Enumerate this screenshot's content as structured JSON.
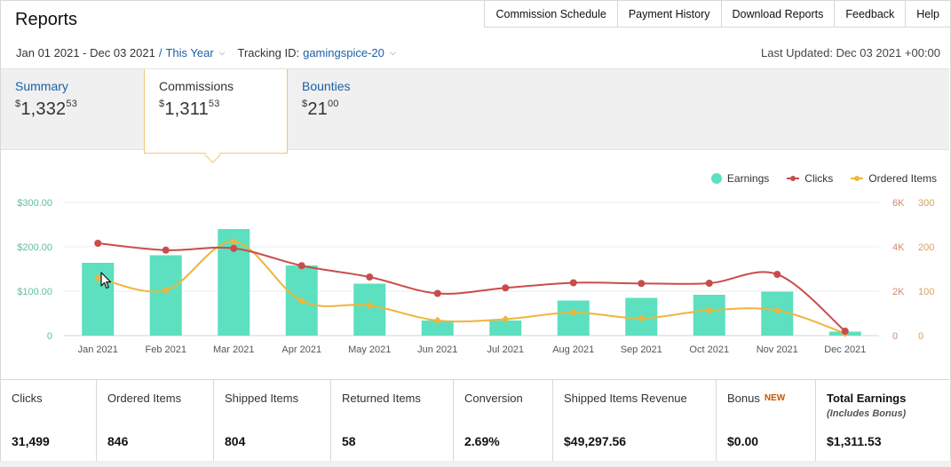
{
  "header": {
    "title": "Reports",
    "nav": [
      "Commission Schedule",
      "Payment History",
      "Download Reports",
      "Feedback",
      "Help"
    ]
  },
  "filters": {
    "date_range": "Jan 01 2021 - Dec 03 2021",
    "separator": "/",
    "preset": "This Year",
    "tracking_label": "Tracking ID:",
    "tracking_id": "gamingspice-20",
    "last_updated": "Last Updated: Dec 03 2021 +00:00"
  },
  "tabs": [
    {
      "label": "Summary",
      "currency": "$",
      "whole": "1,332",
      "cents": "53",
      "active": false
    },
    {
      "label": "Commissions",
      "currency": "$",
      "whole": "1,311",
      "cents": "53",
      "active": true
    },
    {
      "label": "Bounties",
      "currency": "$",
      "whole": "21",
      "cents": "00",
      "active": false
    }
  ],
  "legend": {
    "earnings": "Earnings",
    "clicks": "Clicks",
    "ordered": "Ordered Items"
  },
  "colors": {
    "earnings": "#5ce0bf",
    "clicks": "#c94c4c",
    "ordered": "#f0b43c",
    "link": "#1a5fa8",
    "accent_border": "#f0c875"
  },
  "chart_data": {
    "type": "bar",
    "categories": [
      "Jan 2021",
      "Feb 2021",
      "Mar 2021",
      "Apr 2021",
      "May 2021",
      "Jun 2021",
      "Jul 2021",
      "Aug 2021",
      "Sep 2021",
      "Oct 2021",
      "Nov 2021",
      "Dec 2021"
    ],
    "series": [
      {
        "name": "Earnings",
        "type": "bar",
        "axis": "left",
        "values": [
          164,
          181,
          240,
          158,
          117,
          34,
          34,
          79,
          85,
          92,
          99,
          9
        ]
      },
      {
        "name": "Clicks",
        "type": "line",
        "axis": "right-k",
        "values": [
          4160,
          3850,
          3930,
          3150,
          2640,
          1900,
          2150,
          2380,
          2350,
          2360,
          2760,
          200
        ]
      },
      {
        "name": "Ordered Items",
        "type": "line",
        "axis": "right",
        "values": [
          130,
          102,
          212,
          78,
          68,
          34,
          37,
          52,
          39,
          57,
          57,
          5
        ]
      }
    ],
    "y_left": {
      "ticks": [
        "$300.00",
        "$200.00",
        "$100.00",
        "0"
      ],
      "ylim": [
        0,
        300
      ]
    },
    "y_right_k": {
      "ticks": [
        "6K",
        "4K",
        "2K",
        "0"
      ],
      "ylim": [
        0,
        6000
      ]
    },
    "y_right": {
      "ticks": [
        "300",
        "200",
        "100",
        "0"
      ],
      "ylim": [
        0,
        300
      ]
    },
    "legend_position": "top-right",
    "grid": true
  },
  "stats": [
    {
      "label": "Clicks",
      "value": "31,499"
    },
    {
      "label": "Ordered Items",
      "value": "846"
    },
    {
      "label": "Shipped Items",
      "value": "804"
    },
    {
      "label": "Returned Items",
      "value": "58"
    },
    {
      "label": "Conversion",
      "value": "2.69%"
    },
    {
      "label": "Shipped Items Revenue",
      "value": "$49,297.56"
    },
    {
      "label": "Bonus",
      "badge": "NEW",
      "value": "$0.00"
    },
    {
      "label": "Total Earnings",
      "sub": "(Includes Bonus)",
      "value": "$1,311.53"
    }
  ]
}
